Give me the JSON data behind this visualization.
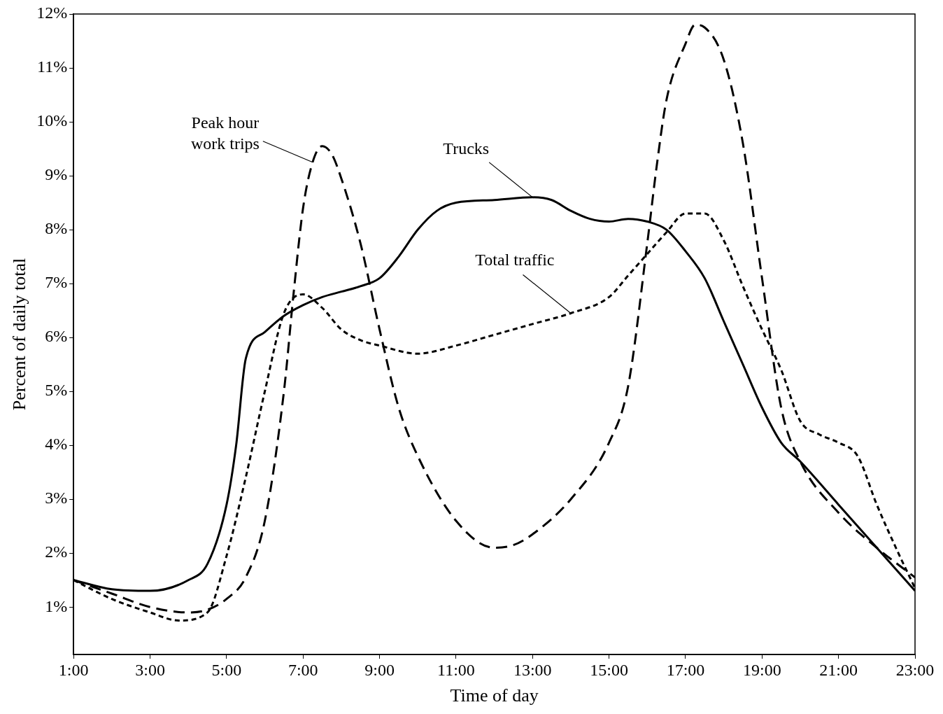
{
  "chart_data": {
    "type": "line",
    "xlabel": "Time of day",
    "ylabel": "Percent of daily total",
    "xlim": [
      1,
      23
    ],
    "ylim": [
      0.12,
      12
    ],
    "xticks": [
      {
        "value": 1,
        "label": "1:00"
      },
      {
        "value": 3,
        "label": "3:00"
      },
      {
        "value": 5,
        "label": "5:00"
      },
      {
        "value": 7,
        "label": "7:00"
      },
      {
        "value": 9,
        "label": "9:00"
      },
      {
        "value": 11,
        "label": "11:00"
      },
      {
        "value": 13,
        "label": "13:00"
      },
      {
        "value": 15,
        "label": "15:00"
      },
      {
        "value": 17,
        "label": "17:00"
      },
      {
        "value": 19,
        "label": "19:00"
      },
      {
        "value": 21,
        "label": "21:00"
      },
      {
        "value": 23,
        "label": "23:00"
      }
    ],
    "yticks": [
      {
        "value": 1,
        "label": "1%"
      },
      {
        "value": 2,
        "label": "2%"
      },
      {
        "value": 3,
        "label": "3%"
      },
      {
        "value": 4,
        "label": "4%"
      },
      {
        "value": 5,
        "label": "5%"
      },
      {
        "value": 6,
        "label": "6%"
      },
      {
        "value": 7,
        "label": "7%"
      },
      {
        "value": 8,
        "label": "8%"
      },
      {
        "value": 9,
        "label": "9%"
      },
      {
        "value": 10,
        "label": "10%"
      },
      {
        "value": 11,
        "label": "11%"
      },
      {
        "value": 12,
        "label": "12%"
      }
    ],
    "grid": false,
    "legend": false,
    "marker": "none",
    "series": [
      {
        "color": "#000000",
        "line_style": "solid",
        "x": [
          1,
          2,
          3,
          4,
          4.5,
          5,
          5.25,
          5.5,
          6,
          6.5,
          7,
          7.5,
          8,
          8.5,
          9,
          9.5,
          10,
          10.5,
          11,
          12,
          13,
          13.5,
          14,
          14.5,
          15,
          15.5,
          16,
          16.5,
          17,
          17.5,
          18,
          18.5,
          19,
          19.5,
          20,
          21,
          22,
          23
        ],
        "values": [
          1.5,
          1.33,
          1.3,
          1.5,
          1.8,
          2.9,
          4.0,
          5.6,
          6.1,
          6.4,
          6.6,
          6.75,
          6.85,
          6.95,
          7.1,
          7.5,
          8.0,
          8.35,
          8.5,
          8.55,
          8.6,
          8.55,
          8.35,
          8.2,
          8.15,
          8.2,
          8.15,
          8.0,
          7.6,
          7.1,
          6.3,
          5.5,
          4.7,
          4.05,
          3.7,
          2.9,
          2.1,
          1.3
        ]
      },
      {
        "color": "#000000",
        "line_style": "dashed",
        "x": [
          1,
          2,
          3,
          4,
          4.5,
          5,
          5.5,
          6,
          6.5,
          6.75,
          7,
          7.25,
          7.5,
          7.75,
          8,
          8.5,
          9,
          9.5,
          10,
          11,
          12,
          12.5,
          13,
          14,
          15,
          15.5,
          16,
          16.25,
          16.5,
          17,
          17.25,
          17.5,
          18,
          18.5,
          19,
          19.5,
          20,
          21,
          22,
          23
        ],
        "values": [
          1.5,
          1.25,
          1.0,
          0.9,
          0.95,
          1.15,
          1.55,
          2.6,
          5.0,
          6.8,
          8.4,
          9.25,
          9.55,
          9.4,
          8.95,
          7.75,
          6.15,
          4.7,
          3.8,
          2.6,
          2.1,
          2.15,
          2.35,
          3.0,
          4.05,
          5.1,
          7.75,
          9.2,
          10.4,
          11.45,
          11.8,
          11.75,
          11.15,
          9.6,
          7.1,
          4.7,
          3.7,
          2.75,
          2.1,
          1.55
        ]
      },
      {
        "color": "#000000",
        "line_style": "dotted",
        "x": [
          1,
          2,
          3,
          3.75,
          4.5,
          5,
          5.5,
          6,
          6.5,
          7,
          7.5,
          8,
          8.5,
          9,
          10,
          11,
          12,
          13,
          14,
          15,
          15.5,
          16,
          16.5,
          17,
          17.5,
          18,
          18.5,
          19,
          19.5,
          20,
          20.5,
          21,
          21.5,
          22,
          22.5,
          23
        ],
        "values": [
          1.5,
          1.15,
          0.9,
          0.75,
          0.9,
          1.95,
          3.4,
          5.0,
          6.45,
          6.8,
          6.55,
          6.15,
          5.95,
          5.85,
          5.7,
          5.85,
          6.05,
          6.25,
          6.45,
          6.75,
          7.15,
          7.55,
          7.95,
          8.3,
          8.3,
          7.8,
          6.95,
          6.15,
          5.4,
          4.45,
          4.2,
          4.05,
          3.8,
          2.9,
          2.1,
          1.35
        ]
      }
    ],
    "annotations": [
      {
        "text": "Peak hour\nwork trips",
        "x": 7.25,
        "y": 9.25
      },
      {
        "text": "Trucks",
        "x": 13.0,
        "y": 8.6
      },
      {
        "text": "Total traffic",
        "x": 14,
        "y": 6.45
      }
    ]
  }
}
